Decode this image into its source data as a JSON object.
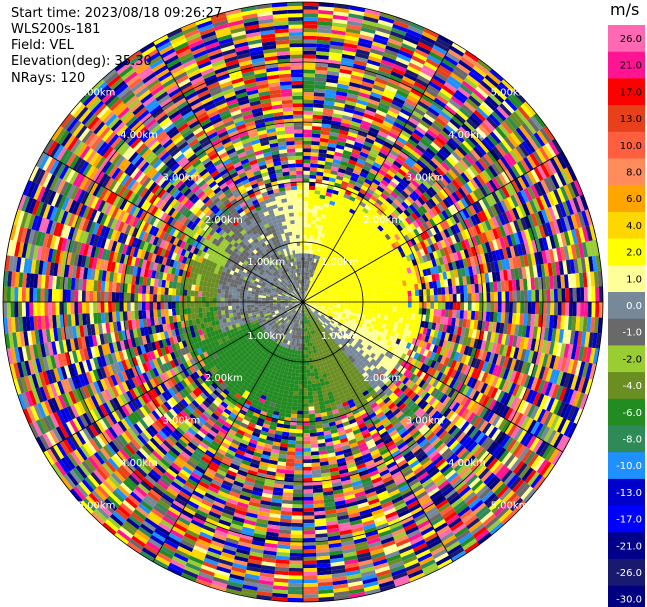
{
  "info": {
    "start_time": "Start time: 2023/08/18 09:26:27",
    "instrument": "WLS200s-181",
    "field": "Field: VEL",
    "elevation": "Elevation(deg): 35.30",
    "nrays": "NRays: 120"
  },
  "colorbar": {
    "unit": "m/s",
    "levels": [
      "26.0",
      "21.0",
      "17.0",
      "13.0",
      "10.0",
      "8.0",
      "6.0",
      "4.0",
      "2.0",
      "1.0",
      "0.0",
      "-1.0",
      "-2.0",
      "-4.0",
      "-6.0",
      "-8.0",
      "-10.0",
      "-13.0",
      "-17.0",
      "-21.0",
      "-26.0",
      "-30.0"
    ],
    "colors": [
      "#ff69b4",
      "#ff1493",
      "#ff0000",
      "#e8401a",
      "#ff5f3f",
      "#ff8c5a",
      "#ffa500",
      "#ffd700",
      "#ffff00",
      "#ffff99",
      "#778899",
      "#696969",
      "#9acd32",
      "#6b8e23",
      "#228b22",
      "#2e8b57",
      "#1e90ff",
      "#0000cd",
      "#0000ff",
      "#00008b",
      "#191970",
      "#000080"
    ]
  },
  "range_labels": [
    "1.00km",
    "2.00km",
    "3.00km",
    "4.00km",
    "5.00km"
  ],
  "chart_data": {
    "type": "heatmap",
    "subtype": "polar PPI scan",
    "field": "VEL",
    "unit": "m/s",
    "nrays": 120,
    "range_rings_km": [
      1,
      2,
      3,
      4,
      5
    ],
    "max_range_km": 5,
    "clean_echo_range_km": 2.0,
    "noise_range_km": [
      2.0,
      5.0
    ],
    "velocity_pattern": {
      "near_zero_sectors_deg": [
        [
          240,
          300
        ]
      ],
      "positive_sector_deg": [
        0,
        110
      ],
      "positive_peak_mps": 4.0,
      "negative_sector_deg": [
        200,
        270
      ],
      "negative_peak_mps": -6.0
    },
    "grid": true,
    "legend": "right colorbar"
  }
}
